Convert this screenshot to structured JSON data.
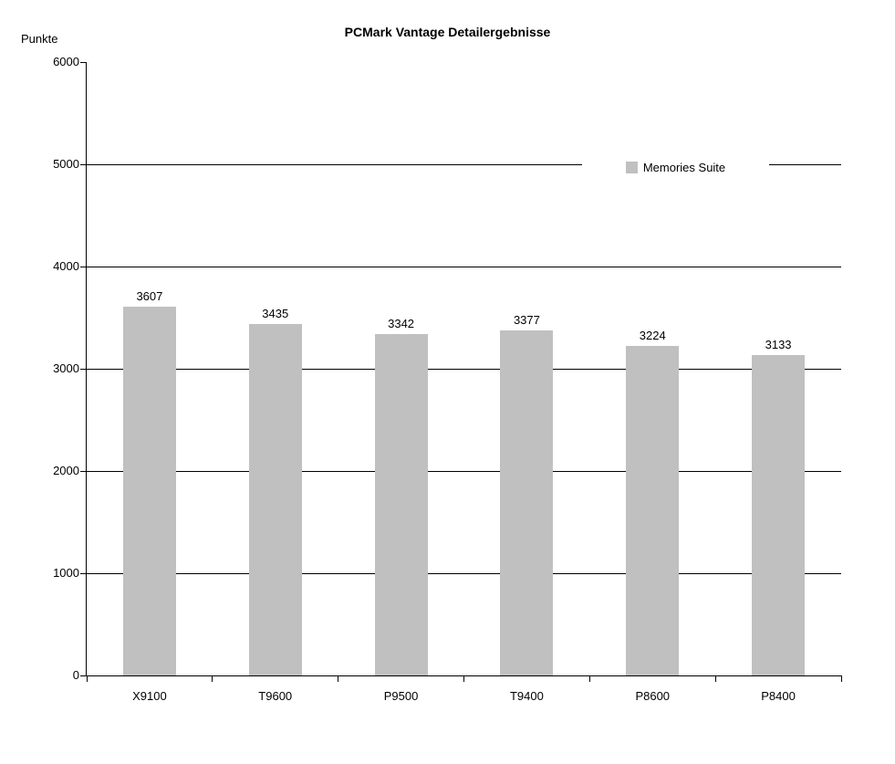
{
  "page": {
    "background": "#ffffff",
    "text_color": "#000000"
  },
  "chart_data": {
    "type": "bar",
    "title": "PCMark Vantage Detailergebnisse",
    "y_axis_label": "Punkte",
    "categories": [
      "X9100",
      "T9600",
      "P9500",
      "T9400",
      "P8600",
      "P8400"
    ],
    "series": [
      {
        "name": "Memories Suite",
        "color": "#c0c0c0",
        "values": [
          3607,
          3435,
          3342,
          3377,
          3224,
          3133
        ]
      }
    ],
    "bar_value_labels": true,
    "ylim": [
      0,
      6000
    ],
    "y_ticks": [
      0,
      1000,
      2000,
      3000,
      4000,
      5000,
      6000
    ],
    "grid": "horizontal",
    "gridline_color": "#000000",
    "axis_color": "#000000",
    "legend_position": "middle-right",
    "legend_marker": "square"
  }
}
